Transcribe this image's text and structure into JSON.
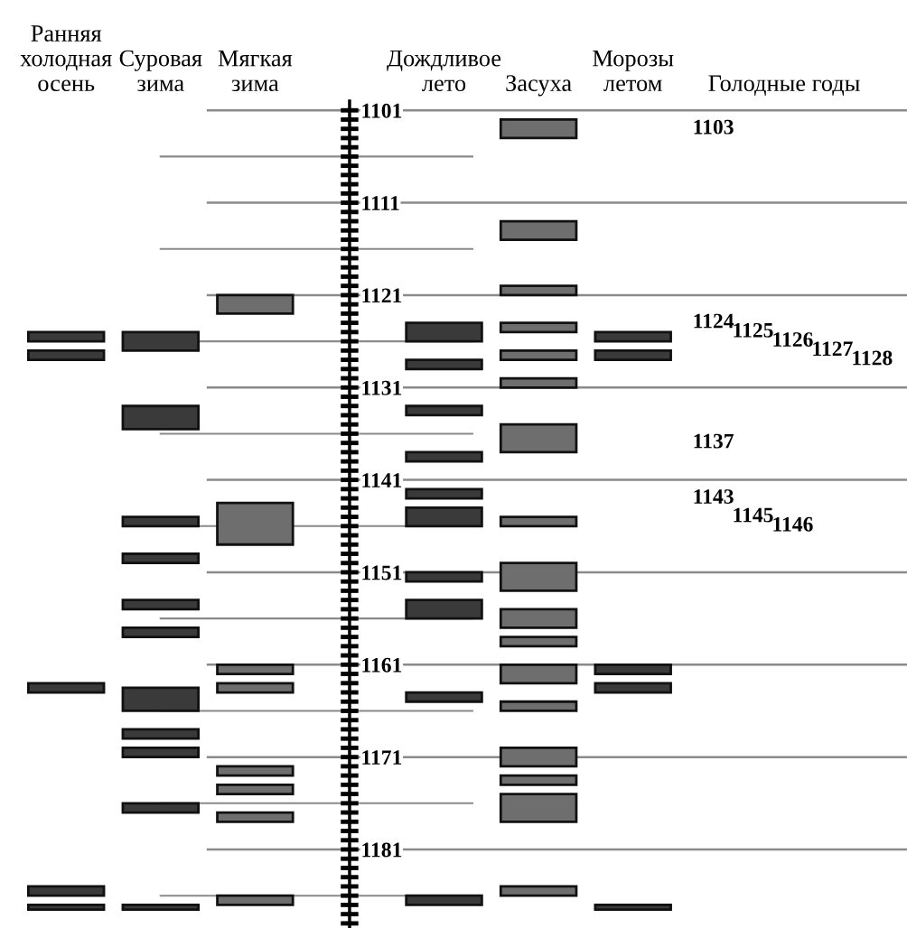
{
  "chart_data": {
    "type": "bar",
    "categories": [
      "Ранняя\nхолодная\nосень",
      "Суровая\nзима",
      "Мягкая\nзима",
      "Дождливое\nлето",
      "Засуха",
      "Морозы\nлетом",
      "Голодные годы"
    ],
    "series": [
      {
        "color": "#3a3a3a",
        "x": [
          "Ранняя\nхолодная\nосень",
          "Ранняя\nхолодная\nосень",
          "Ранняя\nхолодная\nосень",
          "Ранняя\nхолодная\nосень",
          "Ранняя\nхолодная\nосень"
        ],
        "base": [
          1125,
          1127,
          1163,
          1185,
          1187
        ],
        "values": [
          1,
          1,
          1,
          1,
          0.5
        ]
      },
      {
        "color": "#3a3a3a",
        "x": [
          "Суровая\nзима",
          "Суровая\nзима",
          "Суровая\nзима",
          "Суровая\nзима",
          "Суровая\nзима",
          "Суровая\nзима",
          "Суровая\nзима",
          "Суровая\nзима",
          "Суровая\nзима",
          "Суровая\nзима",
          "Суровая\nзима"
        ],
        "base": [
          1125,
          1133,
          1145,
          1149,
          1154,
          1157,
          1163.5,
          1168,
          1170,
          1176,
          1187
        ],
        "values": [
          2,
          2.5,
          1,
          1,
          1,
          1,
          2.5,
          1,
          1,
          1,
          0.5
        ]
      },
      {
        "color": "#6e6e6e",
        "x": [
          "Мягкая\nзима",
          "Мягкая\nзима",
          "Мягкая\nзима",
          "Мягкая\nзима",
          "Мягкая\nзима",
          "Мягкая\nзима",
          "Мягкая\nзима",
          "Мягкая\nзима"
        ],
        "base": [
          1121,
          1143.5,
          1161,
          1163,
          1172,
          1174,
          1177,
          1186
        ],
        "values": [
          2,
          4.5,
          1,
          1,
          1,
          1,
          1,
          1
        ]
      },
      {
        "color": "#3a3a3a",
        "x": [
          "Дождливое\nлето",
          "Дождливое\nлето",
          "Дождливое\nлето",
          "Дождливое\nлето",
          "Дождливое\nлето",
          "Дождливое\nлето",
          "Дождливое\nлето",
          "Дождливое\nлето",
          "Дождливое\nлето",
          "Дождливое\nлето"
        ],
        "base": [
          1124,
          1128,
          1133,
          1138,
          1142,
          1144,
          1151,
          1154,
          1164,
          1186
        ],
        "values": [
          2,
          1,
          1,
          1,
          1,
          2,
          1,
          2,
          1,
          1
        ]
      },
      {
        "color": "#6e6e6e",
        "x": [
          "Засуха",
          "Засуха",
          "Засуха",
          "Засуха",
          "Засуха",
          "Засуха",
          "Засуха",
          "Засуха",
          "Засуха",
          "Засуха",
          "Засуха",
          "Засуха",
          "Засуха",
          "Засуха",
          "Засуха",
          "Засуха",
          "Засуха"
        ],
        "base": [
          1102,
          1113,
          1120,
          1124,
          1127,
          1130,
          1135,
          1145,
          1150,
          1155,
          1158,
          1161,
          1165,
          1170,
          1173,
          1175,
          1185
        ],
        "values": [
          2,
          2,
          1,
          1,
          1,
          1,
          3,
          1,
          3,
          2,
          1,
          2,
          1,
          2,
          1,
          3,
          1
        ]
      },
      {
        "color": "#3a3a3a",
        "x": [
          "Морозы\nлетом",
          "Морозы\nлетом",
          "Морозы\nлетом",
          "Морозы\nлетом",
          "Морозы\nлетом"
        ],
        "base": [
          1125,
          1127,
          1161,
          1163,
          1187
        ],
        "values": [
          1,
          1,
          1,
          1,
          0.5
        ]
      }
    ],
    "annotations": [
      "1103",
      "1124",
      "1125",
      "1126",
      "1127",
      "1128",
      "1137",
      "1143",
      "1145",
      "1146"
    ],
    "ylim": [
      1189.5,
      1100
    ],
    "yticks": [
      1101,
      1111,
      1121,
      1131,
      1141,
      1151,
      1161,
      1171,
      1181
    ],
    "grid": "y",
    "ref_lines": [
      {
        "axis": "y",
        "value": 1106,
        "color": "#8a8a8a"
      },
      {
        "axis": "y",
        "value": 1116,
        "color": "#8a8a8a"
      },
      {
        "axis": "y",
        "value": 1126,
        "color": "#8a8a8a"
      },
      {
        "axis": "y",
        "value": 1136,
        "color": "#8a8a8a"
      },
      {
        "axis": "y",
        "value": 1146,
        "color": "#8a8a8a"
      },
      {
        "axis": "y",
        "value": 1156,
        "color": "#8a8a8a"
      },
      {
        "axis": "y",
        "value": 1166,
        "color": "#8a8a8a"
      },
      {
        "axis": "y",
        "value": 1176,
        "color": "#8a8a8a"
      },
      {
        "axis": "y",
        "value": 1186,
        "color": "#8a8a8a"
      }
    ]
  }
}
